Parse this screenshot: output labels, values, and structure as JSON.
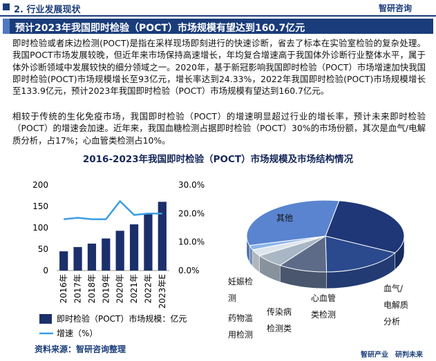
{
  "header": {
    "section": "2. 行业发展现状",
    "logo": "智研咨询"
  },
  "headline": "预计2023年我国即时检验（POCT）市场规模有望达到160.7亿元",
  "paragraphs": [
    "即时检验或者床边检测(POCT)是指在采样现场即刻进行的快速诊断，省去了标本在实验室检验的复杂处理。我国POCT市场发展较晚，但近年来市场保持高速增长，年均复合增速高于我国体外诊断行业整体水平，属于体外诊断领域中发展较快的细分领域之一。2020年，基于新冠影响我国即时检验（POCT）市场增速加快我国即时检验(POCT)市场规模增长至93亿元，增长率达到24.33%，2022年我国即时检验(POCT)市场规模增长至133.9亿元，预计2023年我国即时检验（POCT）市场规模有望达到160.7亿元。",
    "相较于传统的生化免疫市场，我国即时检验（POCT）的增速明显超过行业的增长率，预计未来即时检验（POCT）的增速会加速。近年来，我国血糖检测占据即时检验（POCT）30%的市场份额，其次是血气/电解质分析，占17%；心血管类检测占10%。"
  ],
  "figure_title": "2016-2023年我国即时检验（POCT）市场规模及市场结构情况",
  "chart_data": [
    {
      "type": "combo",
      "categories": [
        "2016年",
        "2017年",
        "2018年",
        "2019年",
        "2020年",
        "2021年",
        "2022年",
        "2023年E"
      ],
      "series": [
        {
          "name": "即时检验（POCT）市场规模：亿元",
          "type": "bar",
          "color": "#1b2f6b",
          "values": [
            45,
            55,
            63,
            75,
            93,
            108,
            133.9,
            160.7
          ]
        },
        {
          "name": "增速（%）",
          "type": "line",
          "axis": "y2",
          "color": "#3a9de4",
          "values": [
            18,
            18.5,
            18,
            18,
            24.33,
            19.5,
            20,
            20
          ]
        }
      ],
      "ylim": [
        0,
        200
      ],
      "yticks": [
        0,
        50,
        100,
        150,
        200
      ],
      "y2lim": [
        0,
        30
      ],
      "y2ticks": [
        {
          "value": 0,
          "label": "0.0%"
        },
        {
          "value": 10,
          "label": "10.0%"
        },
        {
          "value": 20,
          "label": "20.0%"
        },
        {
          "value": 30,
          "label": "30.0%"
        }
      ]
    },
    {
      "type": "pie3d",
      "categories": [
        null,
        "血气/电解质分析",
        "心血管类检测",
        "传染病检测类",
        "药物滥用检测",
        "妊娠检测",
        "其他"
      ],
      "values": [
        30,
        17,
        10,
        6,
        3,
        2,
        32
      ],
      "colors": [
        "#1f3777",
        "#2b4a8e",
        "#5d6b89",
        "#a9b6c4",
        "#dfe5ec",
        "#8db5ea",
        "#5a84cf"
      ]
    }
  ],
  "source": "资料来源：智研咨询整理",
  "footer": {
    "brand": "智研产业",
    "slogan": "研判未来"
  }
}
